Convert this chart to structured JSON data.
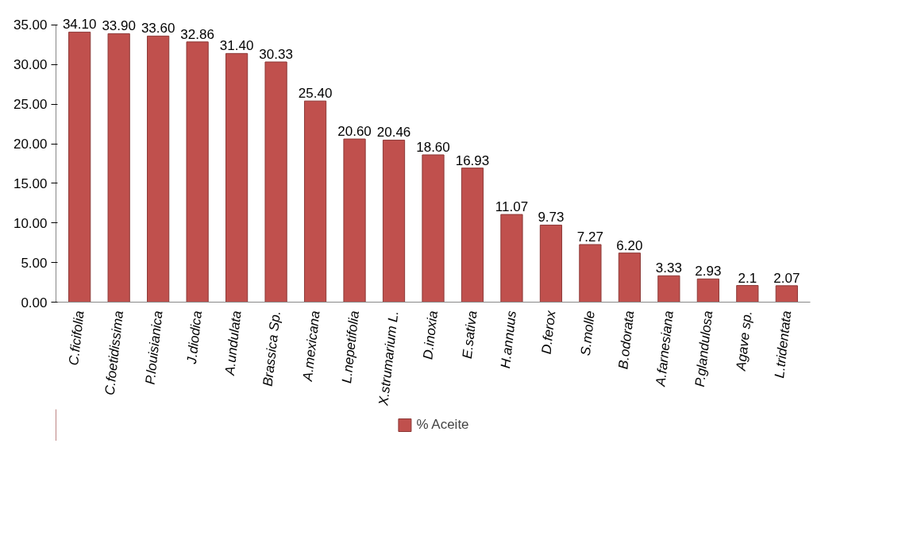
{
  "chart_data": {
    "type": "bar",
    "categories": [
      "C.ficifolia",
      "C.foetidissima",
      "P.louisianica",
      "J.diodica",
      "A.undulata",
      "Brassica Sp.",
      "A.mexicana",
      "L.nepetifolia",
      "X.strumarium L.",
      "D.inoxia",
      "E.sativa",
      "H.annuus",
      "D.ferox",
      "S.molle",
      "B.odorata",
      "A.farnesiana",
      "P.glandulosa",
      "Agave sp.",
      "L.tridentata"
    ],
    "series": [
      {
        "name": "% Aceite",
        "color": "#c0504d",
        "values": [
          34.1,
          33.9,
          33.6,
          32.86,
          31.4,
          30.33,
          25.4,
          20.6,
          20.46,
          18.6,
          16.93,
          11.07,
          9.73,
          7.27,
          6.2,
          3.33,
          2.93,
          2.1,
          2.07
        ],
        "value_labels": [
          "34.10",
          "33.90",
          "33.60",
          "32.86",
          "31.40",
          "30.33",
          "25.40",
          "20.60",
          "20.46",
          "18.60",
          "16.93",
          "11.07",
          "9.73",
          "7.27",
          "6.20",
          "3.33",
          "2.93",
          "2.1",
          "2.07"
        ]
      }
    ],
    "ylim": [
      0,
      35
    ],
    "yticks": [
      {
        "value": 0,
        "label": "0.00"
      },
      {
        "value": 5,
        "label": "5.00"
      },
      {
        "value": 10,
        "label": "10.00"
      },
      {
        "value": 15,
        "label": "15.00"
      },
      {
        "value": 20,
        "label": "20.00"
      },
      {
        "value": 25,
        "label": "25.00"
      },
      {
        "value": 30,
        "label": "30.00"
      },
      {
        "value": 35,
        "label": "35.00"
      }
    ],
    "grid": false,
    "legend": "bottom"
  }
}
